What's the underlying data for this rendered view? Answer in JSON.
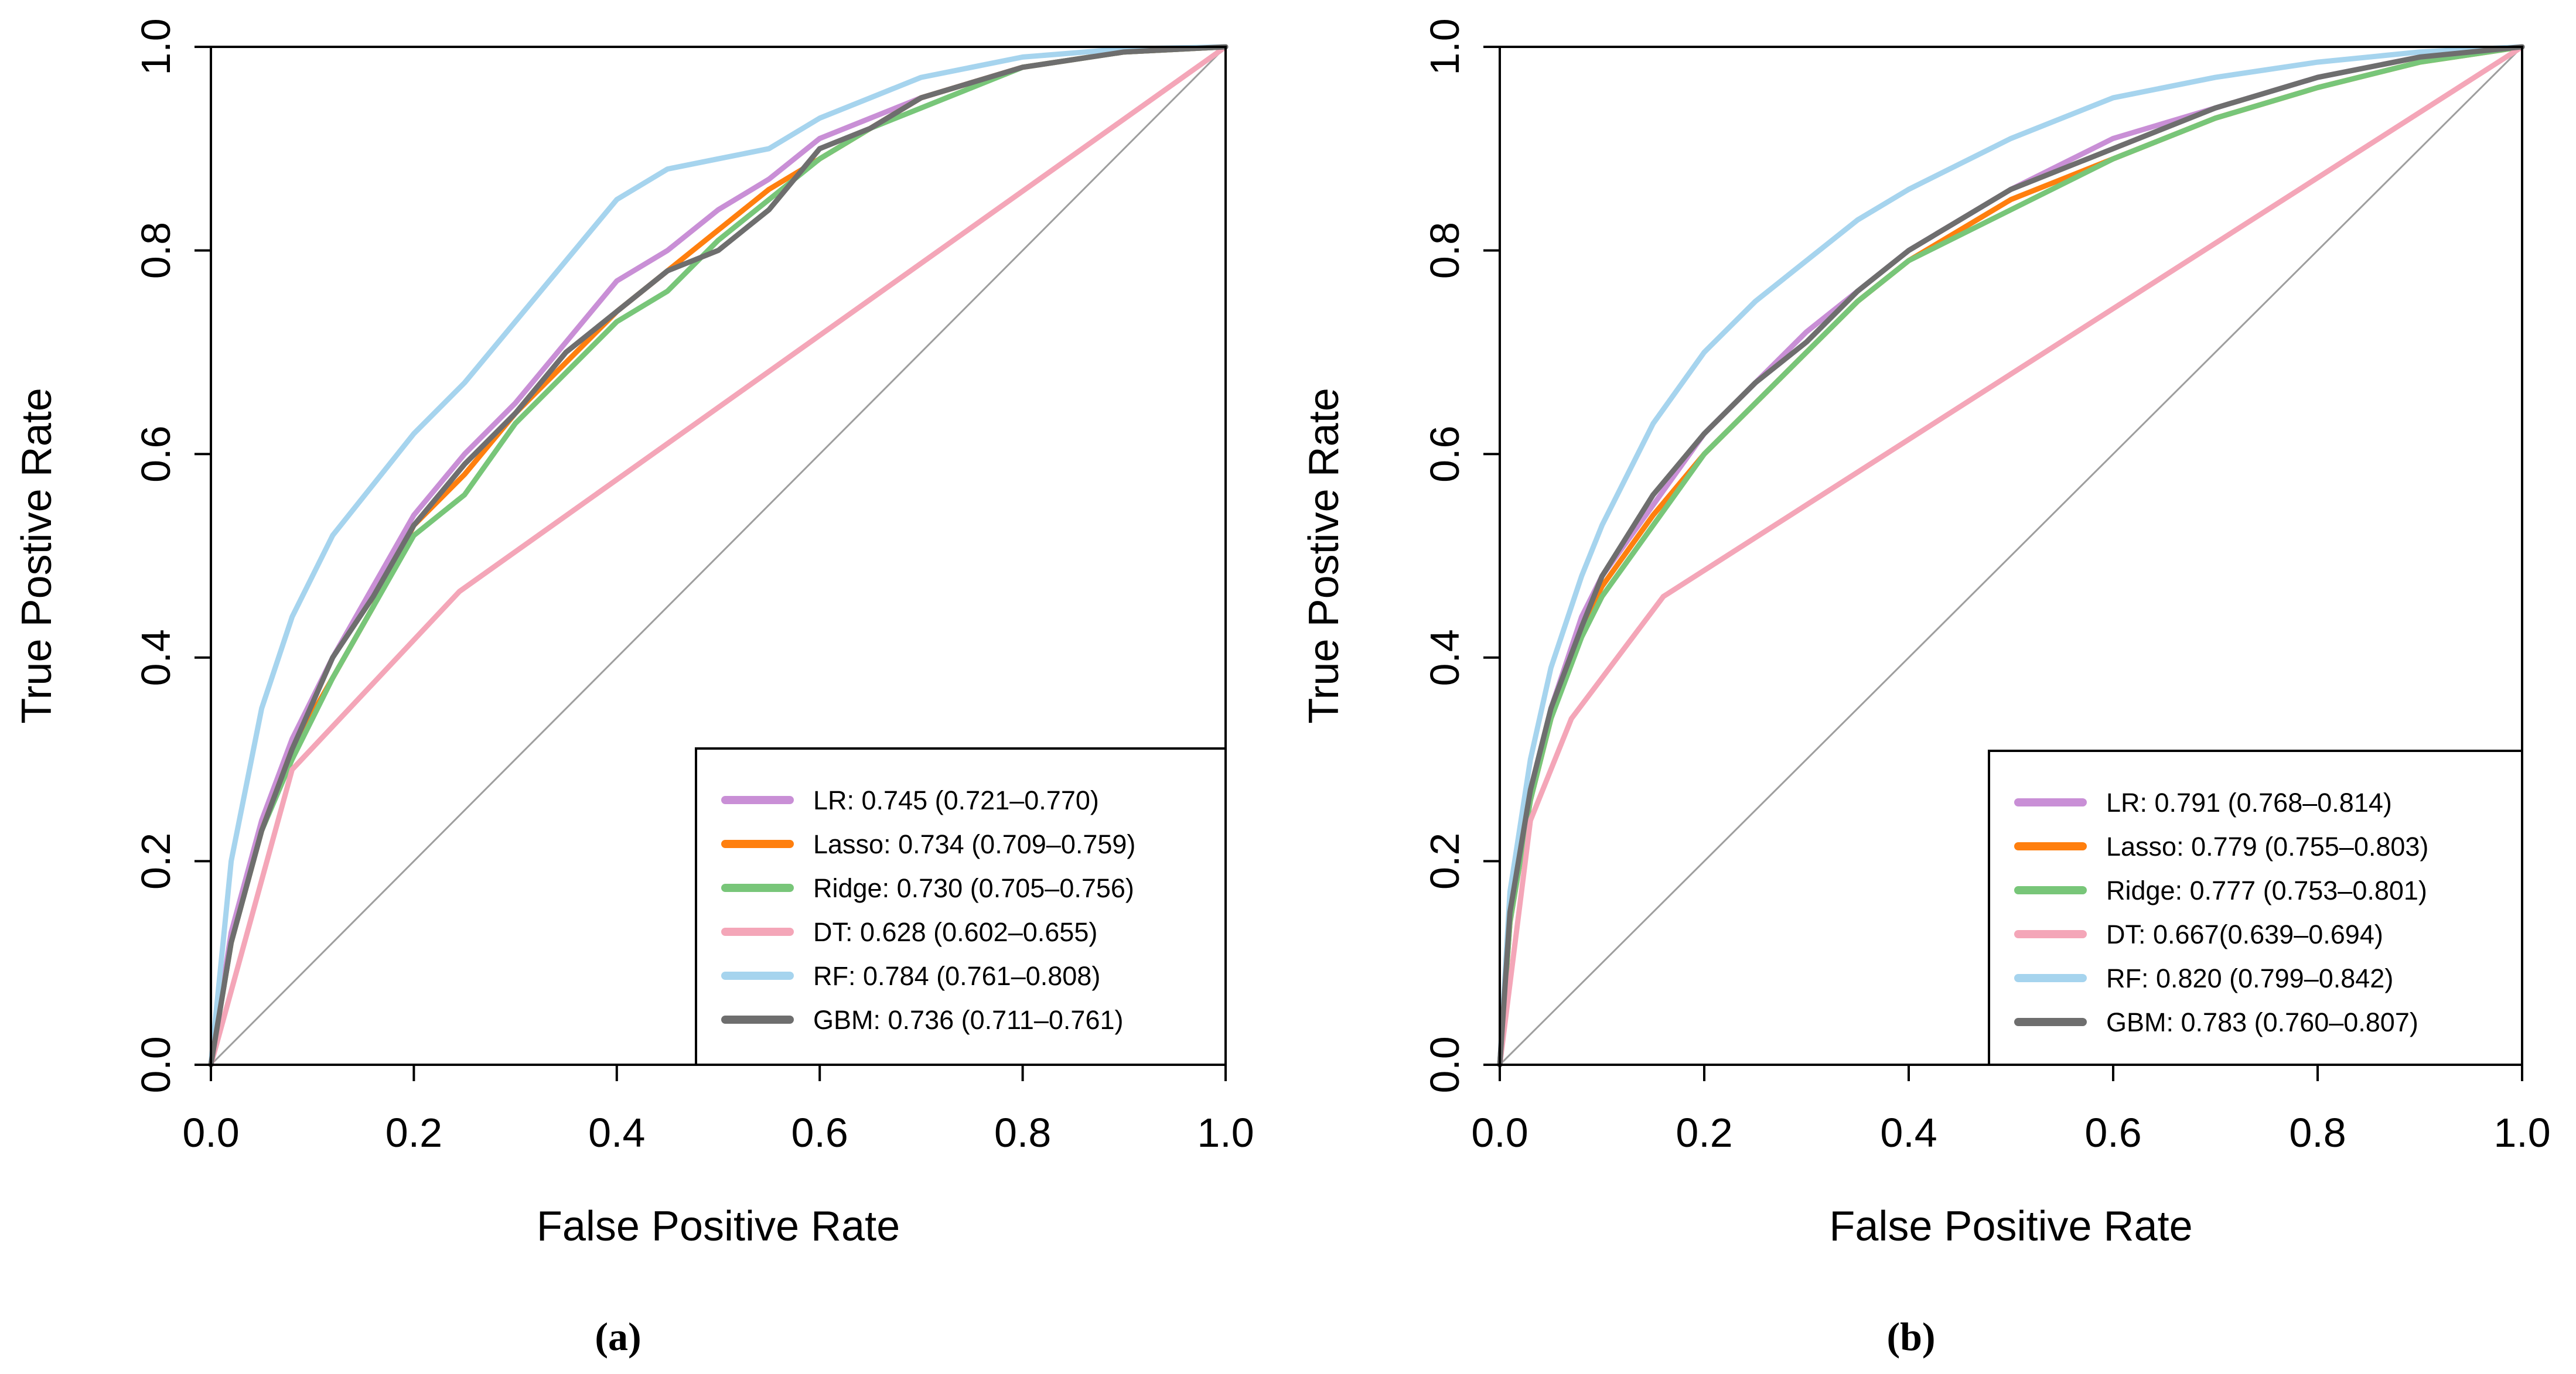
{
  "chart_data": [
    {
      "type": "line",
      "panel_label": "(a)",
      "xlabel": "False Positive Rate",
      "ylabel": "True Postive Rate",
      "xlim": [
        0,
        1
      ],
      "ylim": [
        0,
        1
      ],
      "xticks": [
        "0.0",
        "0.2",
        "0.4",
        "0.6",
        "0.8",
        "1.0"
      ],
      "yticks": [
        "0.0",
        "0.2",
        "0.4",
        "0.6",
        "0.8",
        "1.0"
      ],
      "grid": false,
      "legend_position": "bottom-right",
      "reference_line": {
        "x": [
          0,
          1
        ],
        "y": [
          0,
          1
        ],
        "color": "#9e9e9e"
      },
      "series": [
        {
          "name": "LR",
          "legend": "LR: 0.745 (0.721–0.770)",
          "color": "#c98fd6",
          "x": [
            0,
            0.02,
            0.05,
            0.08,
            0.12,
            0.16,
            0.2,
            0.25,
            0.3,
            0.35,
            0.4,
            0.45,
            0.5,
            0.55,
            0.6,
            0.65,
            0.7,
            0.8,
            0.9,
            1.0
          ],
          "y": [
            0,
            0.13,
            0.24,
            0.32,
            0.4,
            0.47,
            0.54,
            0.6,
            0.65,
            0.71,
            0.77,
            0.8,
            0.84,
            0.87,
            0.91,
            0.93,
            0.95,
            0.98,
            0.995,
            1.0
          ]
        },
        {
          "name": "Lasso",
          "legend": "Lasso: 0.734 (0.709–0.759)",
          "color": "#ff7f0e",
          "x": [
            0,
            0.02,
            0.05,
            0.08,
            0.12,
            0.16,
            0.2,
            0.25,
            0.3,
            0.35,
            0.4,
            0.45,
            0.5,
            0.55,
            0.6,
            0.65,
            0.7,
            0.8,
            0.9,
            1.0
          ],
          "y": [
            0,
            0.12,
            0.23,
            0.31,
            0.38,
            0.45,
            0.53,
            0.58,
            0.64,
            0.69,
            0.74,
            0.78,
            0.82,
            0.86,
            0.89,
            0.92,
            0.95,
            0.98,
            0.995,
            1.0
          ]
        },
        {
          "name": "Ridge",
          "legend": "Ridge: 0.730 (0.705–0.756)",
          "color": "#78c679",
          "x": [
            0,
            0.02,
            0.05,
            0.08,
            0.12,
            0.16,
            0.2,
            0.25,
            0.3,
            0.35,
            0.4,
            0.45,
            0.5,
            0.55,
            0.6,
            0.65,
            0.7,
            0.8,
            0.9,
            1.0
          ],
          "y": [
            0,
            0.12,
            0.23,
            0.3,
            0.38,
            0.45,
            0.52,
            0.56,
            0.63,
            0.68,
            0.73,
            0.76,
            0.81,
            0.85,
            0.89,
            0.92,
            0.94,
            0.98,
            0.995,
            1.0
          ]
        },
        {
          "name": "DT",
          "legend": "DT: 0.628 (0.602–0.655)",
          "color": "#f4a6b8",
          "x": [
            0,
            0.08,
            0.245,
            1.0
          ],
          "y": [
            0,
            0.29,
            0.465,
            1.0
          ]
        },
        {
          "name": "RF",
          "legend": "RF: 0.784 (0.761–0.808)",
          "color": "#a6d4ee",
          "x": [
            0,
            0.02,
            0.05,
            0.08,
            0.12,
            0.16,
            0.2,
            0.25,
            0.3,
            0.35,
            0.4,
            0.45,
            0.5,
            0.55,
            0.6,
            0.65,
            0.7,
            0.8,
            0.9,
            1.0
          ],
          "y": [
            0,
            0.2,
            0.35,
            0.44,
            0.52,
            0.57,
            0.62,
            0.67,
            0.73,
            0.79,
            0.85,
            0.88,
            0.89,
            0.9,
            0.93,
            0.95,
            0.97,
            0.99,
            0.998,
            1.0
          ]
        },
        {
          "name": "GBM",
          "legend": "GBM: 0.736 (0.711–0.761)",
          "color": "#6e6e6e",
          "x": [
            0,
            0.02,
            0.05,
            0.08,
            0.12,
            0.16,
            0.2,
            0.25,
            0.3,
            0.35,
            0.4,
            0.45,
            0.5,
            0.55,
            0.6,
            0.65,
            0.7,
            0.8,
            0.9,
            1.0
          ],
          "y": [
            0,
            0.12,
            0.23,
            0.31,
            0.4,
            0.46,
            0.53,
            0.59,
            0.64,
            0.7,
            0.74,
            0.78,
            0.8,
            0.84,
            0.9,
            0.92,
            0.95,
            0.98,
            0.995,
            1.0
          ]
        }
      ]
    },
    {
      "type": "line",
      "panel_label": "(b)",
      "xlabel": "False Positive Rate",
      "ylabel": "True Postive Rate",
      "xlim": [
        0,
        1
      ],
      "ylim": [
        0,
        1
      ],
      "xticks": [
        "0.0",
        "0.2",
        "0.4",
        "0.6",
        "0.8",
        "1.0"
      ],
      "yticks": [
        "0.0",
        "0.2",
        "0.4",
        "0.6",
        "0.8",
        "1.0"
      ],
      "grid": false,
      "legend_position": "bottom-right",
      "reference_line": {
        "x": [
          0,
          1
        ],
        "y": [
          0,
          1
        ],
        "color": "#9e9e9e"
      },
      "series": [
        {
          "name": "LR",
          "legend": "LR: 0.791 (0.768–0.814)",
          "color": "#c98fd6",
          "x": [
            0,
            0.01,
            0.03,
            0.05,
            0.08,
            0.1,
            0.15,
            0.2,
            0.25,
            0.3,
            0.35,
            0.4,
            0.5,
            0.6,
            0.7,
            0.8,
            0.9,
            1.0
          ],
          "y": [
            0,
            0.15,
            0.27,
            0.35,
            0.44,
            0.48,
            0.55,
            0.62,
            0.67,
            0.72,
            0.76,
            0.8,
            0.86,
            0.91,
            0.94,
            0.97,
            0.99,
            1.0
          ]
        },
        {
          "name": "Lasso",
          "legend": "Lasso: 0.779 (0.755–0.803)",
          "color": "#ff7f0e",
          "x": [
            0,
            0.01,
            0.03,
            0.05,
            0.08,
            0.1,
            0.15,
            0.2,
            0.25,
            0.3,
            0.35,
            0.4,
            0.5,
            0.6,
            0.7,
            0.8,
            0.9,
            1.0
          ],
          "y": [
            0,
            0.14,
            0.26,
            0.34,
            0.43,
            0.47,
            0.54,
            0.6,
            0.65,
            0.7,
            0.75,
            0.79,
            0.85,
            0.89,
            0.93,
            0.96,
            0.985,
            1.0
          ]
        },
        {
          "name": "Ridge",
          "legend": "Ridge: 0.777 (0.753–0.801)",
          "color": "#78c679",
          "x": [
            0,
            0.01,
            0.03,
            0.05,
            0.08,
            0.1,
            0.15,
            0.2,
            0.25,
            0.3,
            0.35,
            0.4,
            0.5,
            0.6,
            0.7,
            0.8,
            0.9,
            1.0
          ],
          "y": [
            0,
            0.14,
            0.26,
            0.34,
            0.42,
            0.46,
            0.53,
            0.6,
            0.65,
            0.7,
            0.75,
            0.79,
            0.84,
            0.89,
            0.93,
            0.96,
            0.985,
            1.0
          ]
        },
        {
          "name": "DT",
          "legend": "DT: 0.667(0.639–0.694)",
          "color": "#f4a6b8",
          "x": [
            0,
            0.03,
            0.07,
            0.16,
            0.3,
            1.0
          ],
          "y": [
            0,
            0.24,
            0.34,
            0.46,
            0.55,
            1.0
          ]
        },
        {
          "name": "RF",
          "legend": "RF: 0.820 (0.799–0.842)",
          "color": "#a6d4ee",
          "x": [
            0,
            0.01,
            0.03,
            0.05,
            0.08,
            0.1,
            0.15,
            0.2,
            0.25,
            0.3,
            0.35,
            0.4,
            0.5,
            0.6,
            0.7,
            0.8,
            0.9,
            1.0
          ],
          "y": [
            0,
            0.17,
            0.3,
            0.39,
            0.48,
            0.53,
            0.63,
            0.7,
            0.75,
            0.79,
            0.83,
            0.86,
            0.91,
            0.95,
            0.97,
            0.985,
            0.995,
            1.0
          ]
        },
        {
          "name": "GBM",
          "legend": "GBM: 0.783 (0.760–0.807)",
          "color": "#6e6e6e",
          "x": [
            0,
            0.01,
            0.03,
            0.05,
            0.08,
            0.1,
            0.15,
            0.2,
            0.25,
            0.3,
            0.35,
            0.4,
            0.5,
            0.6,
            0.7,
            0.8,
            0.9,
            1.0
          ],
          "y": [
            0,
            0.15,
            0.27,
            0.35,
            0.43,
            0.48,
            0.56,
            0.62,
            0.67,
            0.71,
            0.76,
            0.8,
            0.86,
            0.9,
            0.94,
            0.97,
            0.99,
            1.0
          ]
        }
      ]
    }
  ]
}
